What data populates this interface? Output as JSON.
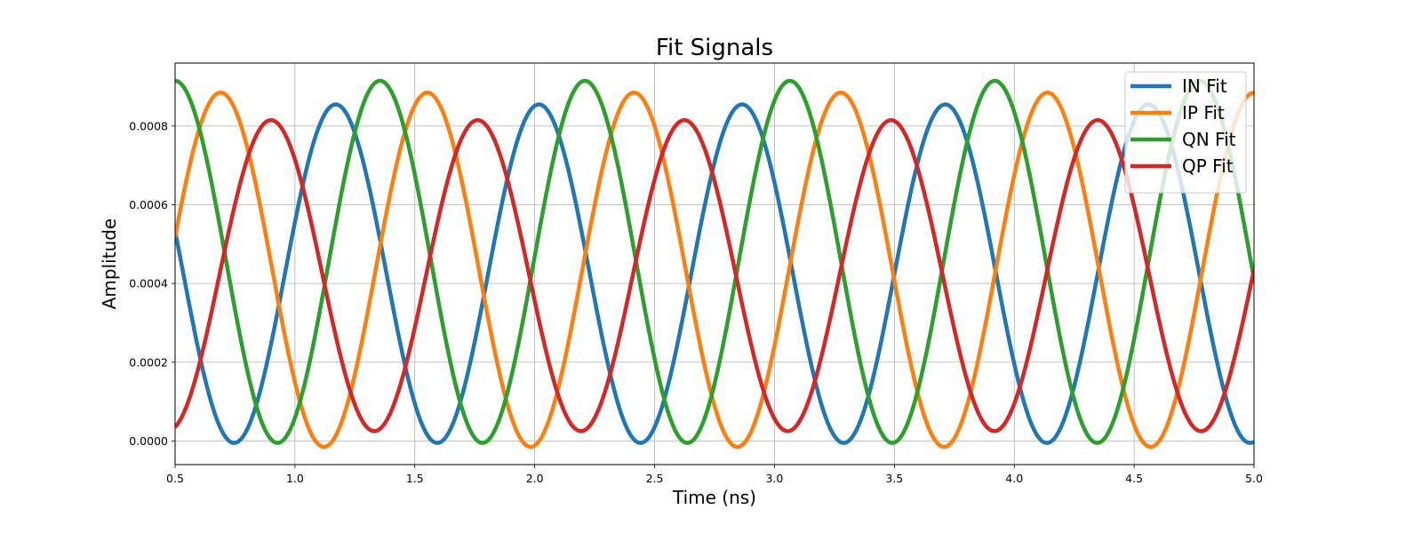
{
  "chart_data": {
    "type": "line",
    "title": "Fit Signals",
    "xlabel": "Time (ns)",
    "ylabel": "Amplitude",
    "xlim": [
      0.5,
      5.0
    ],
    "ylim": [
      -6e-05,
      0.00096
    ],
    "xticks": [
      0.5,
      1.0,
      1.5,
      2.0,
      2.5,
      3.0,
      3.5,
      4.0,
      4.5,
      5.0
    ],
    "xtick_labels": [
      "0.5",
      "1.0",
      "1.5",
      "2.0",
      "2.5",
      "3.0",
      "3.5",
      "4.0",
      "4.5",
      "5.0"
    ],
    "yticks": [
      0.0,
      0.0002,
      0.0004,
      0.0006,
      0.0008
    ],
    "ytick_labels": [
      "0.0000",
      "0.0002",
      "0.0004",
      "0.0006",
      "0.0008"
    ],
    "grid": true,
    "legend_position": "top-right",
    "series": [
      {
        "name": "IN Fit",
        "color": "#1f77b4",
        "offset": 0.000425,
        "amplitude": 0.00043,
        "frequency_ghz": 1.18,
        "peak_time": 1.17
      },
      {
        "name": "IP Fit",
        "color": "#ff7f0e",
        "offset": 0.000435,
        "amplitude": 0.00045,
        "frequency_ghz": 1.16,
        "peak_time": 0.69
      },
      {
        "name": "QN Fit",
        "color": "#2ca02c",
        "offset": 0.000455,
        "amplitude": 0.00046,
        "frequency_ghz": 1.17,
        "peak_time": 0.5
      },
      {
        "name": "QP Fit",
        "color": "#d62728",
        "offset": 0.00042,
        "amplitude": 0.000395,
        "frequency_ghz": 1.16,
        "peak_time": 0.9
      }
    ]
  }
}
